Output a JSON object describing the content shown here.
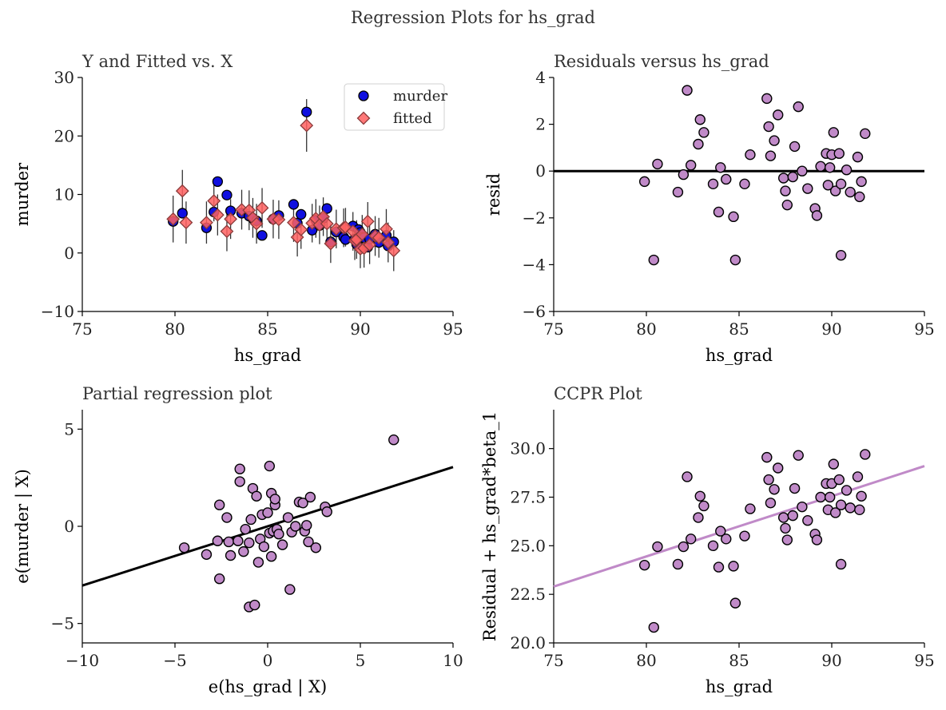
{
  "figure": {
    "suptitle": "Regression Plots for hs_grad"
  },
  "chart_data": [
    {
      "id": "yfit",
      "type": "scatter",
      "title": "Y and Fitted vs. X",
      "xlabel": "hs_grad",
      "ylabel": "murder",
      "xlim": [
        75,
        95
      ],
      "ylim": [
        -10,
        30
      ],
      "xticks": [
        75,
        80,
        85,
        90,
        95
      ],
      "yticks": [
        -10,
        0,
        10,
        20,
        30
      ],
      "grid": false,
      "legend": "top-right",
      "series": [
        {
          "name": "murder",
          "marker": "circle",
          "color": "#1010e0",
          "x": [
            79.9,
            80.4,
            81.7,
            82.1,
            82.3,
            82.8,
            83.0,
            83.6,
            84.0,
            84.2,
            84.4,
            84.7,
            85.3,
            85.6,
            86.4,
            86.6,
            86.8,
            87.1,
            87.4,
            87.6,
            87.8,
            88.0,
            88.2,
            88.4,
            88.7,
            89.1,
            89.2,
            89.6,
            89.7,
            89.8,
            89.9,
            90.0,
            90.1,
            90.2,
            90.4,
            90.5,
            90.8,
            91.0,
            91.4,
            91.5,
            91.8
          ],
          "y": [
            5.4,
            6.8,
            4.3,
            7.0,
            12.2,
            9.9,
            7.2,
            6.8,
            6.3,
            5.9,
            5.5,
            3.0,
            5.8,
            6.4,
            8.3,
            5.1,
            6.6,
            24.1,
            3.9,
            5.6,
            4.7,
            5.9,
            7.6,
            1.9,
            3.6,
            2.7,
            2.3,
            4.6,
            2.4,
            1.5,
            4.0,
            3.5,
            2.7,
            2.6,
            1.0,
            2.4,
            3.2,
            1.8,
            3.0,
            1.2,
            1.9
          ]
        },
        {
          "name": "fitted",
          "marker": "diamond",
          "color": "#ff6060",
          "x": [
            79.9,
            80.4,
            80.6,
            81.7,
            82.1,
            82.3,
            82.8,
            83.0,
            83.6,
            84.0,
            84.2,
            84.4,
            84.7,
            85.3,
            85.6,
            86.4,
            86.6,
            86.8,
            87.1,
            87.4,
            87.6,
            87.8,
            88.0,
            88.2,
            88.4,
            88.7,
            89.1,
            89.2,
            89.6,
            89.7,
            89.8,
            90.0,
            90.1,
            90.2,
            90.4,
            90.5,
            90.8,
            91.0,
            91.4,
            91.5,
            91.8
          ],
          "y": [
            5.8,
            10.6,
            5.2,
            5.2,
            8.9,
            6.5,
            3.7,
            5.8,
            7.4,
            7.3,
            6.0,
            5.0,
            7.7,
            5.8,
            5.7,
            5.2,
            2.7,
            4.0,
            21.8,
            5.1,
            5.9,
            4.8,
            6.2,
            5.0,
            1.6,
            4.1,
            4.3,
            4.4,
            3.7,
            2.1,
            2.3,
            0.7,
            3.2,
            0.8,
            5.4,
            1.4,
            2.9,
            2.6,
            4.1,
            1.8,
            0.4
          ]
        }
      ],
      "errorbars": {
        "color": "#333333",
        "half_width": [
          4.0,
          3.6,
          3.6,
          3.6,
          3.5,
          3.5,
          3.4,
          3.4,
          3.4,
          3.4,
          3.4,
          3.4,
          3.4,
          3.3,
          3.3,
          3.3,
          3.3,
          3.3,
          4.5,
          3.3,
          3.3,
          3.3,
          3.3,
          3.3,
          3.3,
          3.3,
          3.3,
          3.3,
          3.3,
          3.3,
          3.3,
          3.3,
          3.3,
          3.3,
          3.3,
          3.3,
          3.4,
          3.4,
          3.4,
          3.4,
          3.5
        ]
      }
    },
    {
      "id": "resid",
      "type": "scatter",
      "title": "Residuals versus hs_grad",
      "xlabel": "hs_grad",
      "ylabel": "resid",
      "xlim": [
        75,
        95
      ],
      "ylim": [
        -6,
        4
      ],
      "xticks": [
        75,
        80,
        85,
        90,
        95
      ],
      "yticks": [
        -6,
        -4,
        -2,
        0,
        2,
        4
      ],
      "grid": false,
      "hline": 0,
      "hline_color": "#000000",
      "marker_color": "#c08ac8",
      "x": [
        79.9,
        80.4,
        80.6,
        81.7,
        82.0,
        82.2,
        82.4,
        82.8,
        82.9,
        83.1,
        83.6,
        83.9,
        84.0,
        84.3,
        84.7,
        84.8,
        85.3,
        85.6,
        86.5,
        86.6,
        86.7,
        86.9,
        87.1,
        87.4,
        87.5,
        87.6,
        87.9,
        88.0,
        88.2,
        88.4,
        88.7,
        89.1,
        89.2,
        89.4,
        89.7,
        89.8,
        89.9,
        90.0,
        90.1,
        90.2,
        90.4,
        90.5,
        90.5,
        90.8,
        91.0,
        91.4,
        91.5,
        91.6,
        91.8
      ],
      "y": [
        -0.45,
        -3.8,
        0.3,
        -0.9,
        -0.15,
        3.45,
        0.25,
        1.15,
        2.2,
        1.65,
        -0.55,
        -1.75,
        0.15,
        -0.35,
        -1.95,
        -3.8,
        -0.55,
        0.7,
        3.1,
        1.9,
        0.65,
        1.3,
        2.4,
        -0.3,
        -0.85,
        -1.45,
        -0.25,
        1.05,
        2.75,
        0.0,
        -0.75,
        -1.6,
        -1.9,
        0.2,
        0.75,
        -0.6,
        0.15,
        0.7,
        1.65,
        -0.85,
        0.75,
        -0.55,
        -3.6,
        0.05,
        -0.9,
        0.6,
        -1.1,
        -0.45,
        1.6
      ]
    },
    {
      "id": "partial",
      "type": "scatter",
      "title": "Partial regression plot",
      "xlabel": "e(hs_grad | X)",
      "ylabel": "e(murder | X)",
      "xlim": [
        -10,
        10
      ],
      "ylim": [
        -6,
        6
      ],
      "xticks": [
        -10,
        -5,
        0,
        5,
        10
      ],
      "yticks": [
        -5,
        0,
        5
      ],
      "grid": false,
      "fit_line": [
        [
          -10,
          -3.05
        ],
        [
          10,
          3.05
        ]
      ],
      "fit_color": "#000000",
      "marker_color": "#c08ac8",
      "x": [
        -4.5,
        -3.3,
        -2.7,
        -2.6,
        -2.6,
        -2.2,
        -2.1,
        -2.0,
        -1.6,
        -1.5,
        -1.5,
        -1.3,
        -1.2,
        -1.0,
        -1.0,
        -0.9,
        -0.8,
        -0.7,
        -0.6,
        -0.5,
        -0.4,
        -0.3,
        -0.2,
        0.0,
        0.1,
        0.1,
        0.2,
        0.2,
        0.3,
        0.4,
        0.4,
        0.5,
        0.6,
        0.8,
        1.1,
        1.2,
        1.3,
        1.5,
        1.7,
        1.9,
        2.0,
        2.1,
        2.2,
        2.3,
        2.6,
        3.1,
        3.2,
        6.8
      ],
      "y": [
        -1.1,
        -1.45,
        -0.75,
        1.1,
        -2.7,
        0.45,
        -0.8,
        -1.5,
        -0.75,
        2.95,
        2.3,
        -1.3,
        -0.15,
        -0.85,
        -4.15,
        0.35,
        1.95,
        -4.05,
        1.55,
        -1.85,
        -0.65,
        0.6,
        -1.05,
        0.7,
        -0.35,
        3.1,
        1.7,
        -1.55,
        -0.25,
        1.1,
        1.4,
        -0.15,
        -0.4,
        -0.95,
        0.45,
        -3.25,
        -0.3,
        0.0,
        1.25,
        1.2,
        -0.25,
        0.05,
        -0.8,
        1.5,
        -1.1,
        1.0,
        0.75,
        4.45
      ]
    },
    {
      "id": "ccpr",
      "type": "scatter",
      "title": "CCPR Plot",
      "xlabel": "hs_grad",
      "ylabel": "Residual + hs_grad*beta_1",
      "xlim": [
        75,
        95
      ],
      "ylim": [
        20,
        32
      ],
      "xticks": [
        75,
        80,
        85,
        90,
        95
      ],
      "yticks": [
        20.0,
        22.5,
        25.0,
        27.5,
        30.0
      ],
      "grid": false,
      "fit_line": [
        [
          75,
          22.9
        ],
        [
          95,
          29.1
        ]
      ],
      "fit_color": "#c08ac8",
      "marker_color": "#c08ac8",
      "x": [
        79.9,
        80.4,
        80.6,
        81.7,
        82.0,
        82.2,
        82.4,
        82.8,
        82.9,
        83.1,
        83.6,
        83.9,
        84.0,
        84.3,
        84.7,
        84.8,
        85.3,
        85.6,
        86.5,
        86.6,
        86.7,
        86.9,
        87.1,
        87.4,
        87.5,
        87.6,
        87.9,
        88.0,
        88.2,
        88.4,
        88.7,
        89.1,
        89.2,
        89.4,
        89.7,
        89.8,
        89.9,
        90.0,
        90.1,
        90.2,
        90.4,
        90.5,
        90.5,
        90.8,
        91.0,
        91.4,
        91.5,
        91.6,
        91.8
      ],
      "y": [
        24.0,
        20.8,
        24.95,
        24.05,
        24.95,
        28.55,
        25.35,
        26.45,
        27.55,
        27.05,
        25.0,
        23.9,
        25.75,
        25.35,
        23.95,
        22.05,
        25.5,
        26.9,
        29.55,
        28.4,
        27.2,
        27.9,
        29.0,
        26.45,
        25.9,
        25.3,
        26.55,
        27.95,
        29.65,
        27.0,
        26.3,
        25.6,
        25.3,
        27.5,
        28.2,
        26.85,
        27.5,
        28.2,
        29.2,
        26.7,
        28.4,
        27.1,
        24.05,
        27.85,
        26.95,
        28.55,
        26.85,
        27.55,
        29.7
      ]
    }
  ]
}
